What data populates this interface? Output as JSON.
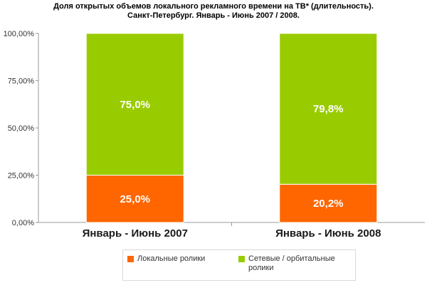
{
  "chart_data": {
    "type": "bar",
    "stacked": true,
    "title_lines": [
      "Доля открытых объемов локального рекламного времени на ТВ* (длительность).",
      "Санкт-Петербург. Январь - Июнь 2007 / 2008."
    ],
    "categories": [
      "Январь - Июнь 2007",
      "Январь - Июнь 2008"
    ],
    "series": [
      {
        "name": "Локальные ролики",
        "values": [
          25.0,
          20.2
        ],
        "labels": [
          "25,0%",
          "20,2%"
        ],
        "color": "#ff6600"
      },
      {
        "name": "Сетевые / орбитальные ролики",
        "values": [
          75.0,
          79.8
        ],
        "labels": [
          "75,0%",
          "79,8%"
        ],
        "color": "#99cc00"
      }
    ],
    "y_ticks": [
      "0,00%",
      "25,00%",
      "50,00%",
      "75,00%",
      "100,00%"
    ],
    "ylim": [
      0,
      100
    ],
    "grid": false,
    "legend_position": "bottom"
  }
}
